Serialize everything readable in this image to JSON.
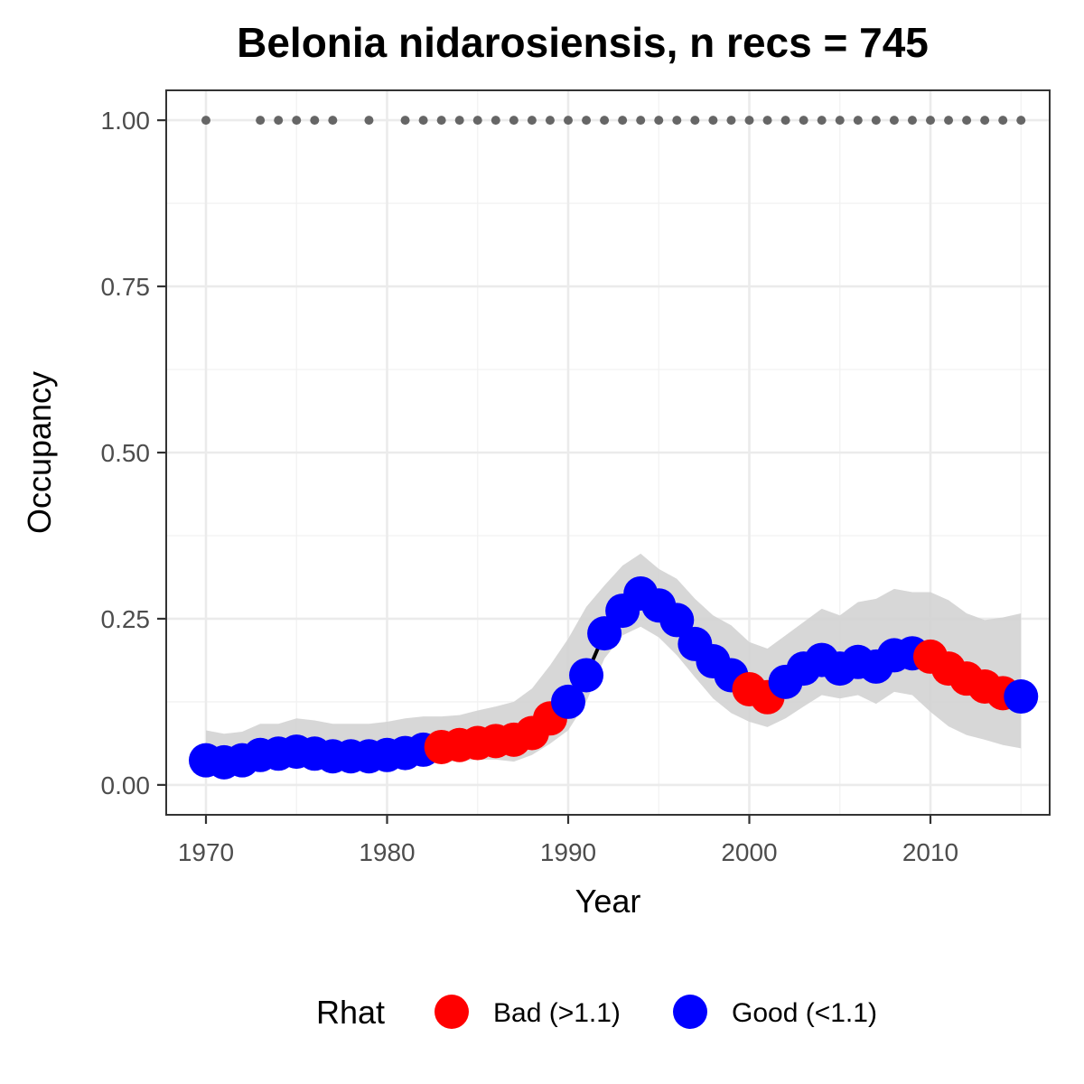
{
  "chart_data": {
    "type": "line",
    "title": "Belonia nidarosiensis, n recs = 745",
    "xlabel": "Year",
    "ylabel": "Occupancy",
    "xlim": [
      1967.8,
      1916.8
    ],
    "ylim": [
      -0.045,
      1.045
    ],
    "x_ticks": [
      1970,
      1980,
      1990,
      2000,
      2010
    ],
    "x_tick_labels": [
      "1970",
      "1980",
      "1990",
      "2000",
      "2010"
    ],
    "y_ticks": [
      0,
      0.25,
      0.5,
      0.75,
      1.0
    ],
    "y_tick_labels": [
      "0.00",
      "0.25",
      "0.50",
      "0.75",
      "1.00"
    ],
    "grid": true,
    "legend": {
      "title": "Rhat",
      "position": "bottom",
      "entries": [
        {
          "label": "Bad (>1.1)",
          "color": "#ff0000"
        },
        {
          "label": "Good (<1.1)",
          "color": "#0000ff"
        }
      ]
    },
    "colors": {
      "bad": "#ff0000",
      "good": "#0000ff",
      "ribbon": "#d3d3d3",
      "line": "#000000",
      "record_dots": "#666666"
    },
    "series": [
      {
        "x": [
          1970,
          1971,
          1972,
          1973,
          1974,
          1975,
          1976,
          1977,
          1978,
          1979,
          1980,
          1981,
          1982,
          1983,
          1984,
          1985,
          1986,
          1987,
          1988,
          1989,
          1990,
          1991,
          1992,
          1993,
          1994,
          1995,
          1996,
          1997,
          1998,
          1999,
          2000,
          2001,
          2002,
          2003,
          2004,
          2005,
          2006,
          2007,
          2008,
          2009,
          2010,
          2011,
          2012,
          2013,
          2014,
          2015
        ],
        "y": [
          0.037,
          0.034,
          0.037,
          0.045,
          0.047,
          0.05,
          0.047,
          0.043,
          0.043,
          0.043,
          0.045,
          0.048,
          0.053,
          0.057,
          0.06,
          0.063,
          0.066,
          0.068,
          0.078,
          0.1,
          0.125,
          0.165,
          0.228,
          0.262,
          0.288,
          0.27,
          0.248,
          0.212,
          0.186,
          0.165,
          0.144,
          0.132,
          0.155,
          0.175,
          0.188,
          0.175,
          0.185,
          0.178,
          0.195,
          0.198,
          0.193,
          0.175,
          0.16,
          0.148,
          0.138,
          0.133
        ],
        "lower": [
          0.022,
          0.02,
          0.022,
          0.028,
          0.03,
          0.032,
          0.03,
          0.027,
          0.026,
          0.026,
          0.027,
          0.029,
          0.032,
          0.034,
          0.036,
          0.038,
          0.038,
          0.035,
          0.045,
          0.062,
          0.082,
          0.125,
          0.19,
          0.225,
          0.238,
          0.222,
          0.195,
          0.162,
          0.13,
          0.108,
          0.095,
          0.087,
          0.1,
          0.118,
          0.135,
          0.13,
          0.135,
          0.122,
          0.14,
          0.135,
          0.11,
          0.088,
          0.075,
          0.068,
          0.06,
          0.055
        ],
        "upper": [
          0.082,
          0.077,
          0.08,
          0.092,
          0.092,
          0.1,
          0.097,
          0.092,
          0.092,
          0.092,
          0.095,
          0.1,
          0.103,
          0.103,
          0.105,
          0.112,
          0.118,
          0.125,
          0.145,
          0.18,
          0.22,
          0.268,
          0.3,
          0.33,
          0.348,
          0.325,
          0.31,
          0.28,
          0.255,
          0.24,
          0.215,
          0.205,
          0.225,
          0.245,
          0.265,
          0.255,
          0.275,
          0.28,
          0.295,
          0.29,
          0.29,
          0.278,
          0.258,
          0.248,
          0.252,
          0.258
        ],
        "rhat": [
          "good",
          "good",
          "good",
          "good",
          "good",
          "good",
          "good",
          "good",
          "good",
          "good",
          "good",
          "good",
          "good",
          "bad",
          "bad",
          "bad",
          "bad",
          "bad",
          "bad",
          "bad",
          "good",
          "good",
          "good",
          "good",
          "good",
          "good",
          "good",
          "good",
          "good",
          "good",
          "bad",
          "bad",
          "good",
          "good",
          "good",
          "good",
          "good",
          "good",
          "good",
          "good",
          "bad",
          "bad",
          "bad",
          "bad",
          "bad",
          "good"
        ]
      }
    ],
    "record_years": {
      "y": 1.0,
      "x": [
        1970,
        1973,
        1974,
        1975,
        1976,
        1977,
        1979,
        1981,
        1982,
        1983,
        1984,
        1985,
        1986,
        1987,
        1988,
        1989,
        1990,
        1991,
        1992,
        1993,
        1994,
        1995,
        1996,
        1997,
        1998,
        1999,
        2000,
        2001,
        2002,
        2003,
        2004,
        2005,
        2006,
        2007,
        2008,
        2009,
        2010,
        2011,
        2012,
        2013,
        2014,
        2015
      ]
    }
  }
}
